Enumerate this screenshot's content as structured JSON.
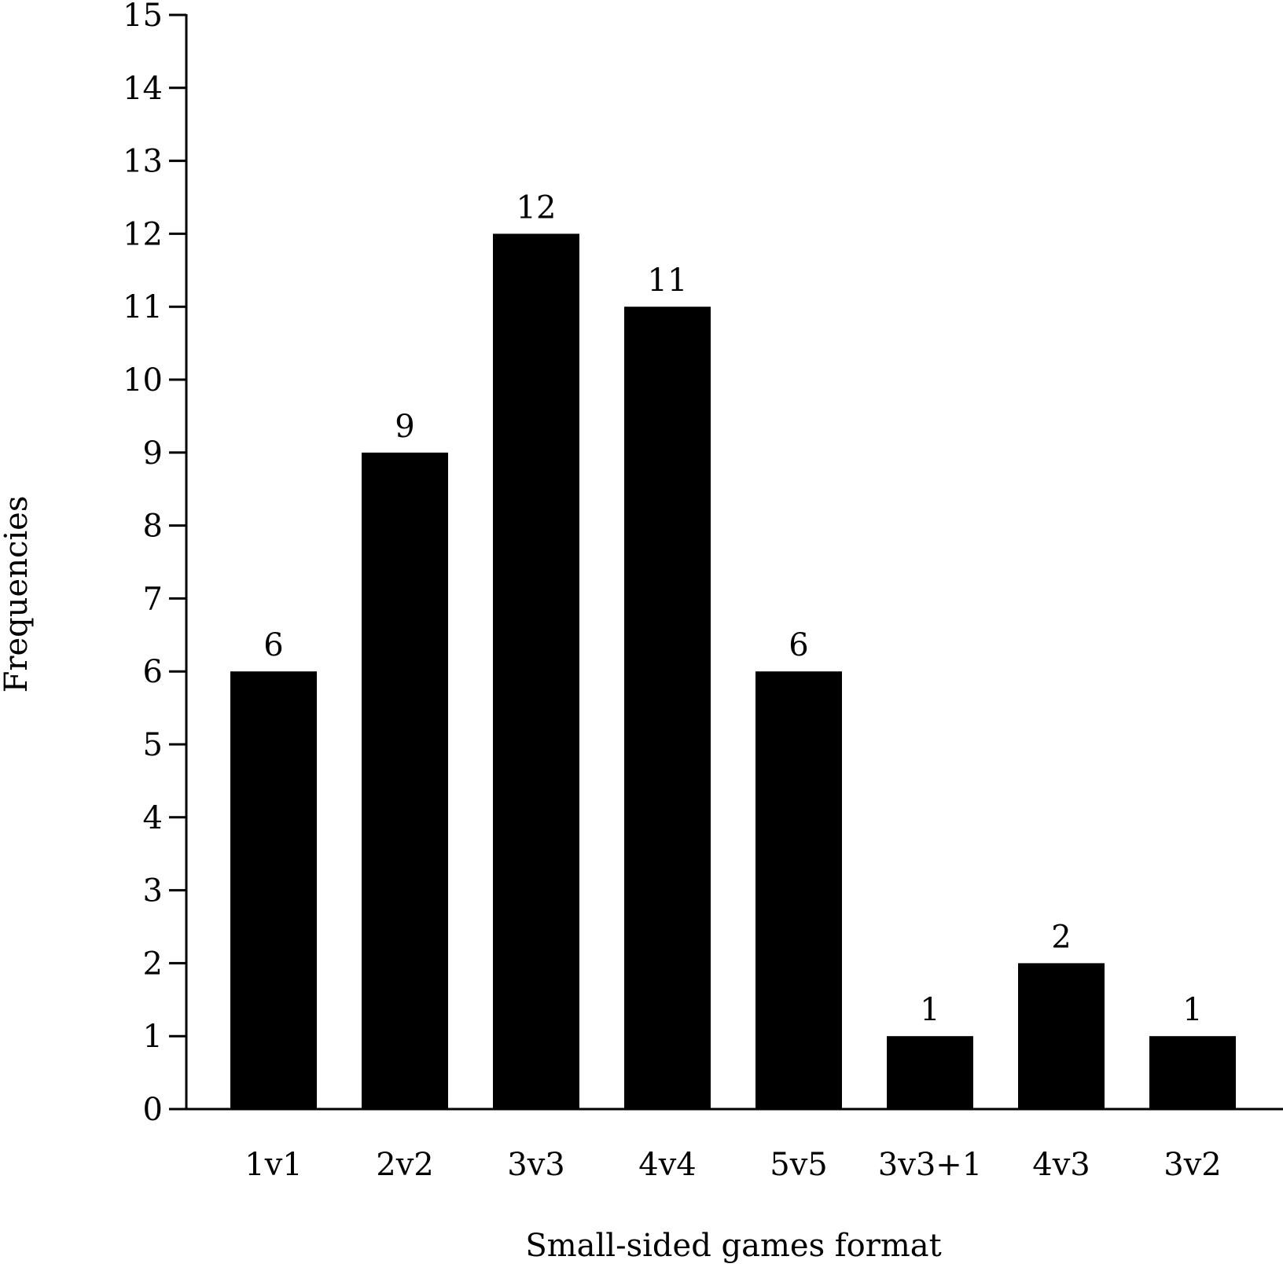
{
  "chart_data": {
    "type": "bar",
    "categories": [
      "1v1",
      "2v2",
      "3v3",
      "4v4",
      "5v5",
      "3v3+1",
      "4v3",
      "3v2"
    ],
    "values": [
      6,
      9,
      12,
      11,
      6,
      1,
      2,
      1
    ],
    "data_labels": [
      "6",
      "9",
      "12",
      "11",
      "6",
      "1",
      "2",
      "1"
    ],
    "title": "",
    "xlabel": "Small-sided games format",
    "ylabel": "Frequencies",
    "ylim": [
      0,
      15
    ],
    "yticks": [
      0,
      1,
      2,
      3,
      4,
      5,
      6,
      7,
      8,
      9,
      10,
      11,
      12,
      13,
      14,
      15
    ],
    "bar_color": "#000000",
    "axis_color": "#000000",
    "grid": false,
    "legend": "none"
  }
}
